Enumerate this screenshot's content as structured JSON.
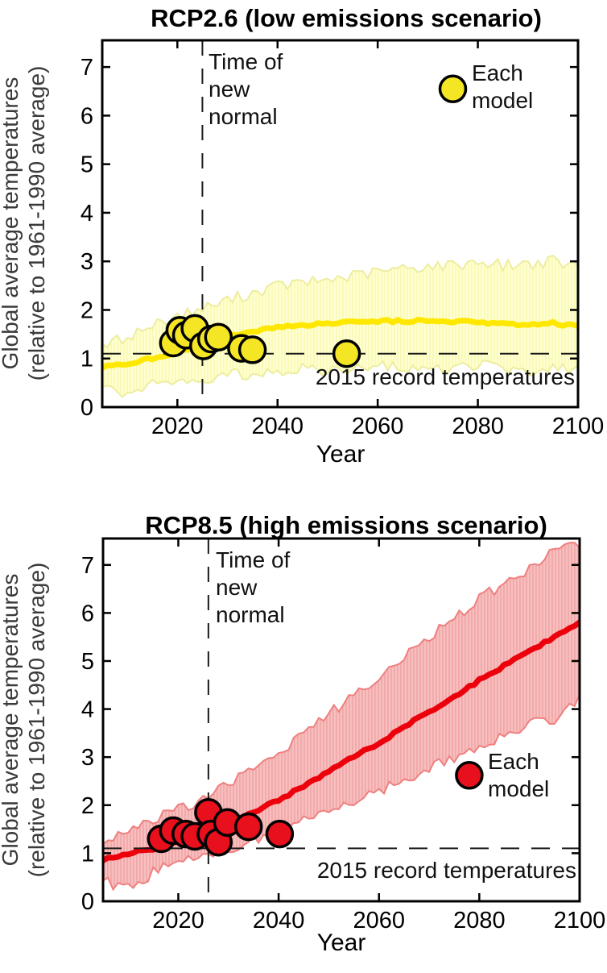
{
  "chart_data": [
    {
      "type": "line",
      "title": "RCP2.6 (low emissions scenario)",
      "xlabel": "Year",
      "ylabel_lines": [
        "Global average temperatures",
        "(relative to 1961-1990 average)"
      ],
      "xlim": [
        2005,
        2100
      ],
      "ylim": [
        0,
        7.55
      ],
      "xticks": [
        2020,
        2040,
        2060,
        2080,
        2100
      ],
      "yticks": [
        0,
        1,
        2,
        3,
        4,
        5,
        6,
        7
      ],
      "grid": false,
      "x_anchors": [
        2005,
        2010,
        2015,
        2020,
        2025,
        2030,
        2035,
        2040,
        2045,
        2050,
        2055,
        2060,
        2065,
        2070,
        2075,
        2080,
        2085,
        2090,
        2095,
        2100
      ],
      "series": [
        {
          "name": "model spread upper bound",
          "values": [
            1.25,
            1.45,
            1.68,
            1.88,
            2.02,
            2.2,
            2.35,
            2.5,
            2.55,
            2.62,
            2.7,
            2.78,
            2.85,
            2.9,
            2.92,
            3.0,
            2.92,
            2.95,
            3.0,
            2.88
          ]
        },
        {
          "name": "multi-model median",
          "values": [
            0.82,
            0.9,
            1.0,
            1.13,
            1.27,
            1.45,
            1.56,
            1.64,
            1.68,
            1.72,
            1.74,
            1.76,
            1.77,
            1.78,
            1.76,
            1.74,
            1.72,
            1.7,
            1.73,
            1.66
          ]
        },
        {
          "name": "model spread lower bound",
          "values": [
            0.35,
            0.28,
            0.5,
            0.6,
            0.58,
            0.65,
            0.7,
            0.75,
            0.8,
            0.72,
            0.78,
            0.85,
            0.8,
            0.85,
            0.78,
            0.85,
            0.8,
            0.72,
            0.8,
            0.75
          ]
        }
      ],
      "models_scatter": [
        [
          2019.2,
          1.32
        ],
        [
          2020.5,
          1.58
        ],
        [
          2021.8,
          1.48
        ],
        [
          2023.5,
          1.62
        ],
        [
          2025.2,
          1.26
        ],
        [
          2026.8,
          1.4
        ],
        [
          2028.2,
          1.44
        ],
        [
          2032.8,
          1.21
        ],
        [
          2035.0,
          1.18
        ],
        [
          2053.8,
          1.1
        ]
      ],
      "noise_amp": {
        "band": 0.24,
        "median": 0.06
      },
      "annotations": {
        "vline_year": 2025,
        "vline_label_lines": [
          "Time of",
          "new",
          "normal"
        ],
        "hline_value": 1.1,
        "hline_label": "2015 record temperatures",
        "legend_label_lines": [
          "Each",
          "model"
        ],
        "legend_pos": [
          2075,
          6.55
        ]
      },
      "colors": {
        "band": "#ffffd4",
        "band_stripe": "#f9f9ae",
        "band_edge": "#ededa0",
        "median": "#ffe800",
        "dot": "#f5e625",
        "dot_edge": "#000000",
        "dashed_line": "#1a1a1a"
      }
    },
    {
      "type": "line",
      "title": "RCP8.5 (high emissions scenario)",
      "xlabel": "Year",
      "ylabel_lines": [
        "Global average temperatures",
        "(relative to 1961-1990 average)"
      ],
      "xlim": [
        2005,
        2100
      ],
      "ylim": [
        0,
        7.55
      ],
      "xticks": [
        2020,
        2040,
        2060,
        2080,
        2100
      ],
      "yticks": [
        0,
        1,
        2,
        3,
        4,
        5,
        6,
        7
      ],
      "grid": false,
      "x_anchors": [
        2005,
        2010,
        2015,
        2020,
        2025,
        2030,
        2035,
        2040,
        2045,
        2050,
        2055,
        2060,
        2065,
        2070,
        2075,
        2080,
        2085,
        2090,
        2095,
        2100
      ],
      "series": [
        {
          "name": "model spread upper bound",
          "values": [
            1.3,
            1.45,
            1.7,
            1.9,
            2.15,
            2.45,
            2.78,
            3.1,
            3.5,
            3.9,
            4.3,
            4.7,
            5.05,
            5.5,
            5.9,
            6.3,
            6.6,
            6.9,
            7.35,
            7.4
          ]
        },
        {
          "name": "multi-model median",
          "values": [
            0.85,
            1.0,
            1.1,
            1.25,
            1.4,
            1.62,
            1.85,
            2.1,
            2.4,
            2.7,
            3.0,
            3.3,
            3.62,
            3.95,
            4.25,
            4.6,
            4.9,
            5.2,
            5.5,
            5.8
          ]
        },
        {
          "name": "model spread lower bound",
          "values": [
            0.4,
            0.25,
            0.6,
            0.8,
            0.95,
            1.1,
            1.3,
            1.45,
            1.65,
            1.9,
            2.1,
            2.3,
            2.5,
            2.75,
            3.0,
            3.2,
            3.5,
            3.7,
            3.8,
            4.2
          ]
        }
      ],
      "models_scatter": [
        [
          2016.6,
          1.3
        ],
        [
          2019.0,
          1.47
        ],
        [
          2021.5,
          1.4
        ],
        [
          2023.3,
          1.35
        ],
        [
          2026.0,
          1.85
        ],
        [
          2026.5,
          1.4
        ],
        [
          2028.0,
          1.23
        ],
        [
          2029.8,
          1.64
        ],
        [
          2034.0,
          1.55
        ],
        [
          2040.2,
          1.4
        ]
      ],
      "noise_amp": {
        "band": 0.24,
        "median": 0.06
      },
      "annotations": {
        "vline_year": 2026,
        "vline_label_lines": [
          "Time of",
          "new",
          "normal"
        ],
        "hline_value": 1.1,
        "hline_label": "2015 record temperatures",
        "legend_label_lines": [
          "Each",
          "model"
        ],
        "legend_pos": [
          2078,
          2.62
        ]
      },
      "colors": {
        "band": "#f7bfbf",
        "band_stripe": "#f1a3a3",
        "band_edge": "#ef8080",
        "median": "#ec000c",
        "dot": "#e8101c",
        "dot_edge": "#000000",
        "dashed_line": "#1a1a1a"
      }
    }
  ]
}
